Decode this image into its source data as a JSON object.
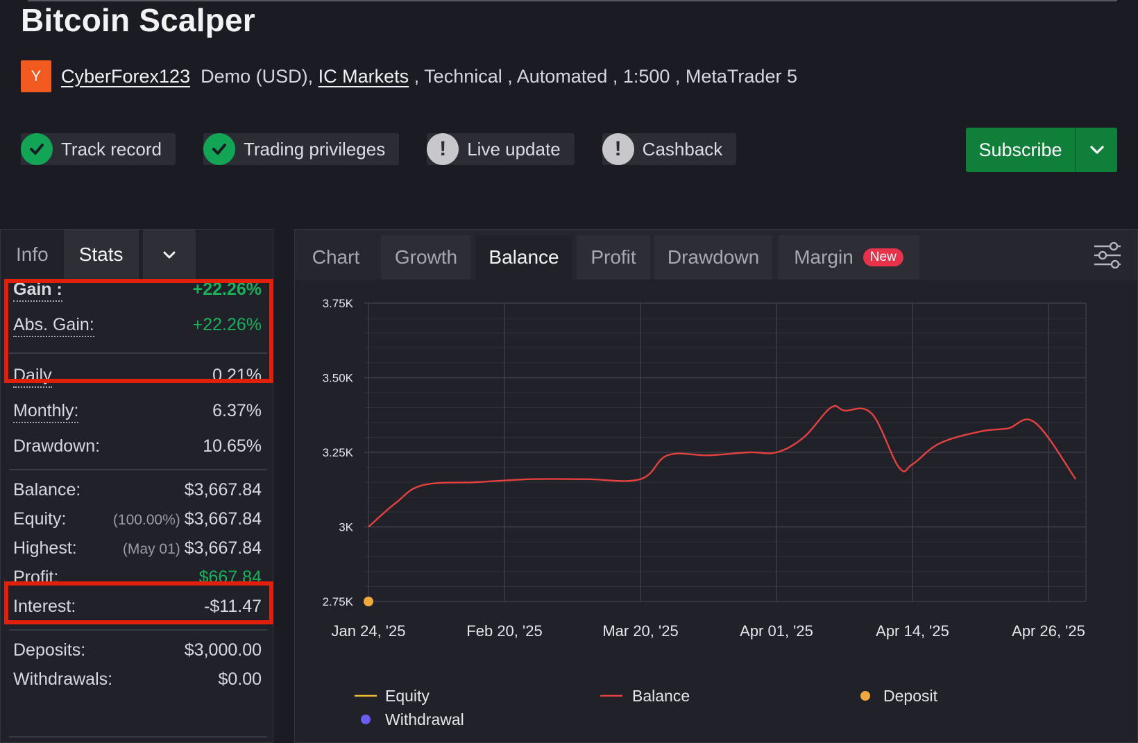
{
  "header": {
    "title": "Bitcoin Scalper",
    "avatar_letter": "Y",
    "username": "CyberForex123",
    "account_prefix": "Demo (USD), ",
    "broker": "IC Markets",
    "account_suffix": " , Technical , Automated , 1:500 , MetaTrader 5"
  },
  "badges": [
    {
      "label": "Track record",
      "status": "verified",
      "icon": "check-circle-icon"
    },
    {
      "label": "Trading privileges",
      "status": "verified",
      "icon": "check-circle-icon"
    },
    {
      "label": "Live update",
      "status": "not-verified",
      "icon": "exclamation-circle-icon"
    },
    {
      "label": "Cashback",
      "status": "not-verified",
      "icon": "exclamation-circle-icon"
    }
  ],
  "subscribe": {
    "label": "Subscribe",
    "color": "#0f7f3a"
  },
  "left_tabs": {
    "info": "Info",
    "stats": "Stats",
    "active": "Stats"
  },
  "stats": {
    "gain": {
      "label": "Gain :",
      "value": "+22.26%"
    },
    "abs_gain": {
      "label": "Abs. Gain:",
      "value": "+22.26%"
    },
    "daily": {
      "label": "Daily",
      "value": "0.21%"
    },
    "monthly": {
      "label": "Monthly:",
      "value": "6.37%"
    },
    "drawdown": {
      "label": "Drawdown:",
      "value": "10.65%"
    },
    "balance": {
      "label": "Balance:",
      "value": "$3,667.84"
    },
    "equity": {
      "label": "Equity:",
      "note": "(100.00%)",
      "value": "$3,667.84"
    },
    "highest": {
      "label": "Highest:",
      "note": "(May 01)",
      "value": "$3,667.84"
    },
    "profit": {
      "label": "Profit:",
      "value": "$667.84"
    },
    "interest": {
      "label": "Interest:",
      "value": "-$11.47"
    },
    "deposits": {
      "label": "Deposits:",
      "value": "$3,000.00"
    },
    "withdrawals": {
      "label": "Withdrawals:",
      "value": "$0.00"
    }
  },
  "chart_tabs": {
    "chart": "Chart",
    "growth": "Growth",
    "balance": "Balance",
    "profit": "Profit",
    "drawdown": "Drawdown",
    "margin": "Margin",
    "new_badge": "New",
    "active": "Balance"
  },
  "colors": {
    "balance": "#e5413e",
    "equity": "#f0b92e",
    "deposit": "#f2a93b",
    "withdrawal": "#6a5cf0",
    "positive": "#18b05a",
    "highlight": "#e0200b"
  },
  "chart_data": {
    "type": "line",
    "ylim": [
      2750,
      3750
    ],
    "yticks": [
      3750,
      3500,
      3250,
      3000,
      2750
    ],
    "ytick_labels": [
      "3.75K",
      "3.50K",
      "3.25K",
      "3K",
      "2.75K"
    ],
    "xtick_labels": [
      "Jan 24, '25",
      "Feb 20, '25",
      "Mar 20, '25",
      "Apr 01, '25",
      "Apr 14, '25",
      "Apr 26, '25"
    ],
    "legend": [
      "Equity",
      "Balance",
      "Deposit",
      "Withdrawal"
    ],
    "series": [
      {
        "name": "Balance",
        "x": [
          0,
          0.2,
          0.4,
          0.8,
          1.2,
          1.6,
          2.0,
          2.2,
          2.5,
          2.8,
          3.0,
          3.2,
          3.4,
          3.5,
          3.7,
          3.9,
          4.0,
          4.2,
          4.5,
          4.7,
          4.9,
          5.2
        ],
        "y": [
          3000,
          3080,
          3140,
          3150,
          3160,
          3160,
          3160,
          3240,
          3240,
          3250,
          3250,
          3300,
          3400,
          3390,
          3380,
          3200,
          3210,
          3280,
          3320,
          3330,
          3350,
          3160
        ]
      },
      {
        "name": "Deposit",
        "x": [
          0
        ],
        "y": [
          2750
        ]
      }
    ]
  }
}
